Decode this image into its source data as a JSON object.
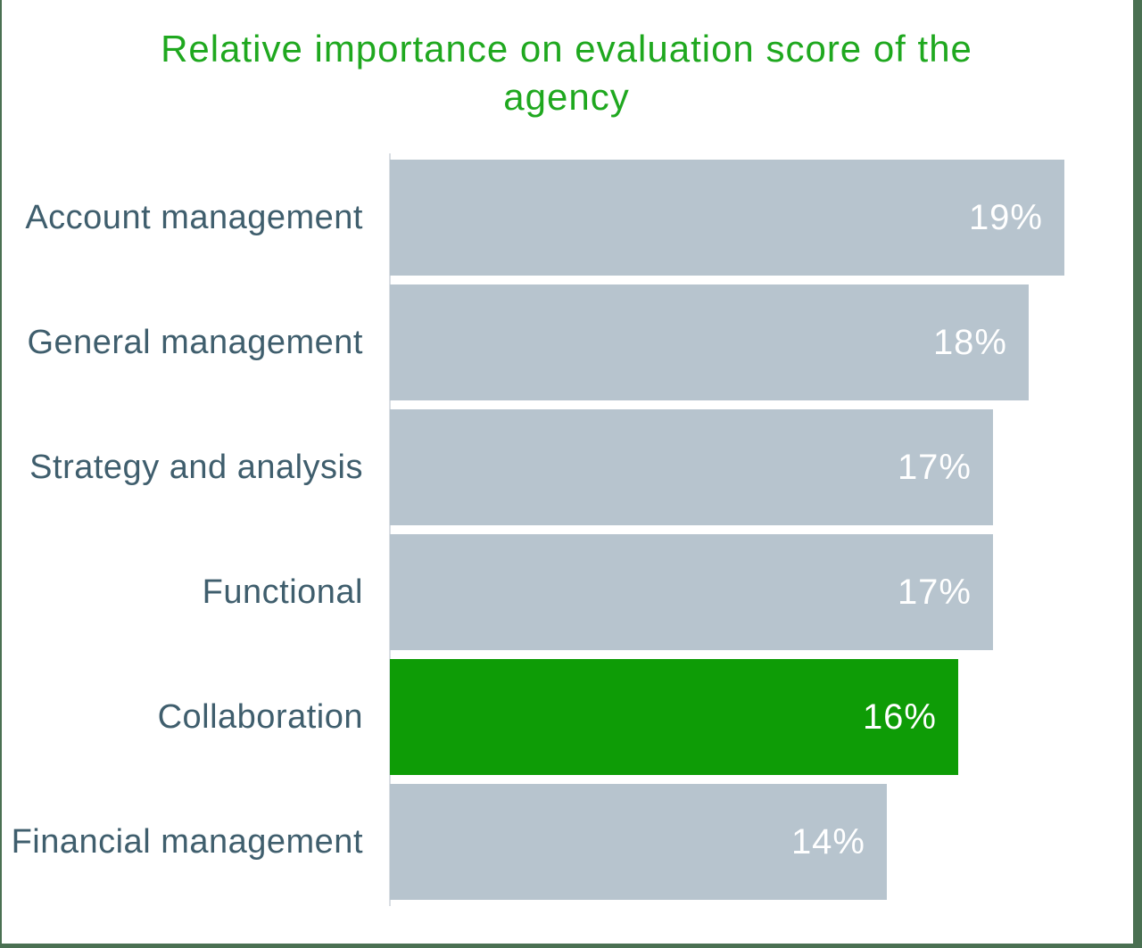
{
  "title": "Relative importance on evaluation score of the agency",
  "colors": {
    "title_green": "#1fa81f",
    "bar_default": "#b7c4ce",
    "bar_highlight": "#0e9c06",
    "label_text": "#3f5e6d",
    "value_text": "#ffffff",
    "axis_line": "#d9dee3",
    "frame_green": "#4a7052"
  },
  "chart_data": {
    "type": "bar",
    "orientation": "horizontal",
    "title": "Relative importance on evaluation score of the agency",
    "categories": [
      "Account management",
      "General management",
      "Strategy and analysis",
      "Functional",
      "Collaboration",
      "Financial management"
    ],
    "values": [
      19,
      18,
      17,
      17,
      16,
      14
    ],
    "value_labels": [
      "19%",
      "18%",
      "17%",
      "17%",
      "16%",
      "14%"
    ],
    "highlighted_category": "Collaboration",
    "xlabel": "",
    "ylabel": "",
    "xlim": [
      0,
      19
    ],
    "grid": false,
    "legend": "none",
    "value_label_position": "inside-end"
  }
}
